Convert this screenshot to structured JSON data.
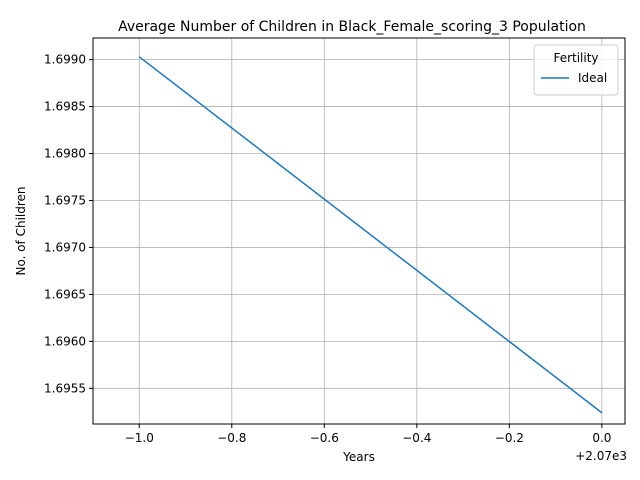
{
  "chart_data": {
    "type": "line",
    "title": "Average Number of Children in Black_Female_scoring_3 Population",
    "xlabel": "Years",
    "ylabel": "No. of Children",
    "x_offset_label": "+2.07e3",
    "x": [
      2069,
      2070
    ],
    "xlim": [
      2068.9,
      2070.05
    ],
    "ylim": [
      1.69512,
      1.69923
    ],
    "xticks": [
      2069.0,
      2069.2,
      2069.4,
      2069.6,
      2069.8,
      2070.0
    ],
    "xtick_labels": [
      "−1.0",
      "−0.8",
      "−0.6",
      "−0.4",
      "−0.2",
      "0.0"
    ],
    "yticks": [
      1.6955,
      1.696,
      1.6965,
      1.697,
      1.6975,
      1.698,
      1.6985,
      1.699
    ],
    "ytick_labels": [
      "1.6955",
      "1.6960",
      "1.6965",
      "1.6970",
      "1.6975",
      "1.6980",
      "1.6985",
      "1.6990"
    ],
    "series": [
      {
        "name": "Ideal",
        "values": [
          1.69903,
          1.69524
        ],
        "color": "#1f77b4"
      }
    ],
    "legend": {
      "title": "Fertility",
      "placement": "top-right"
    },
    "grid": true
  }
}
